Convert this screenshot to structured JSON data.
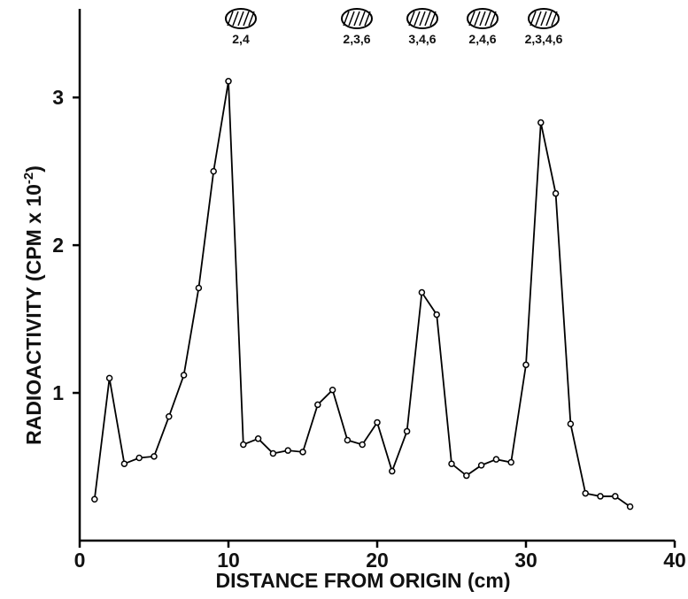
{
  "chart_data": {
    "type": "line",
    "x_label": "DISTANCE  FROM  ORIGIN  (cm)",
    "y_label": [
      "RADIOACTIVITY  (CPM x 10",
      "-2",
      ")"
    ],
    "annotations": [
      "2,4",
      "2,3,6",
      "3,4,6",
      "2,4,6",
      "2,3,4,6"
    ],
    "x": [
      1,
      2,
      3,
      4,
      5,
      6,
      7,
      8,
      9,
      10,
      11,
      12,
      13,
      14,
      15,
      16,
      17,
      18,
      19,
      20,
      21,
      22,
      23,
      24,
      25,
      26,
      27,
      28,
      29,
      30,
      31,
      32,
      33,
      34,
      35,
      36,
      37
    ],
    "series": [
      {
        "color": "#000000",
        "values": [
          0.28,
          1.1,
          0.52,
          0.56,
          0.57,
          0.84,
          1.12,
          1.71,
          2.5,
          3.11,
          0.65,
          0.69,
          0.59,
          0.61,
          0.6,
          0.92,
          1.02,
          0.68,
          0.65,
          0.8,
          0.47,
          0.74,
          1.68,
          1.53,
          0.52,
          0.44,
          0.51,
          0.55,
          0.53,
          1.19,
          2.83,
          2.35,
          0.79,
          0.32,
          0.3,
          0.3,
          0.23
        ]
      }
    ],
    "xlim": [
      0,
      40
    ],
    "ylim": [
      0,
      3.6
    ],
    "xticks": [
      0,
      10,
      20,
      30,
      40
    ],
    "yticks": [
      1,
      2,
      3
    ]
  }
}
